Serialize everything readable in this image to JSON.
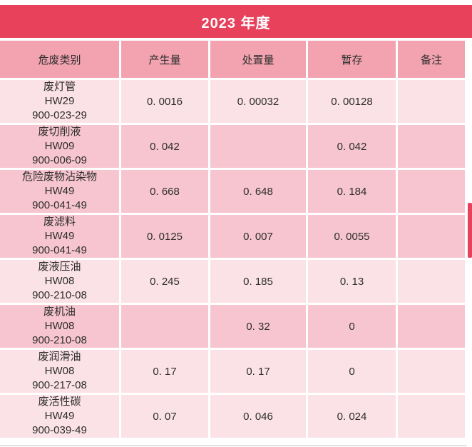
{
  "chart_data": {
    "type": "table",
    "title": "2023 年度",
    "columns": [
      "危废类别",
      "产生量",
      "处置量",
      "暂存",
      "备注"
    ],
    "rows": [
      {
        "category": "废灯管",
        "hw": "HW29",
        "code": "900-023-29",
        "produced": "0. 0016",
        "disposed": "0. 00032",
        "stored": "0. 00128",
        "note": ""
      },
      {
        "category": "废切削液",
        "hw": "HW09",
        "code": "900-006-09",
        "produced": "0. 042",
        "disposed": "",
        "stored": "0. 042",
        "note": ""
      },
      {
        "category": "危险废物沾染物",
        "hw": "HW49",
        "code": "900-041-49",
        "produced": "0. 668",
        "disposed": "0. 648",
        "stored": "0. 184",
        "note": ""
      },
      {
        "category": "废滤料",
        "hw": "HW49",
        "code": "900-041-49",
        "produced": "0. 0125",
        "disposed": "0. 007",
        "stored": "0. 0055",
        "note": ""
      },
      {
        "category": "废液压油",
        "hw": "HW08",
        "code": "900-210-08",
        "produced": "0. 245",
        "disposed": "0. 185",
        "stored": "0. 13",
        "note": ""
      },
      {
        "category": "废机油",
        "hw": "HW08",
        "code": "900-210-08",
        "produced": "",
        "disposed": "0. 32",
        "stored": "0",
        "note": ""
      },
      {
        "category": "废润滑油",
        "hw": "HW08",
        "code": "900-217-08",
        "produced": "0. 17",
        "disposed": "0. 17",
        "stored": "0",
        "note": ""
      },
      {
        "category": "废活性碳",
        "hw": "HW49",
        "code": "900-039-49",
        "produced": "0. 07",
        "disposed": "0. 046",
        "stored": "0. 024",
        "note": ""
      }
    ],
    "colors": {
      "title_bg": "#E8415B",
      "title_text": "#FFFFFF",
      "column_header_bg": "#F2A3AF",
      "row_light": "#FBE2E7",
      "row_medium": "#F7C5CF",
      "grid": "#FFFFFF",
      "text": "#2D2D2D",
      "scrollbar": "#E8415B"
    }
  }
}
